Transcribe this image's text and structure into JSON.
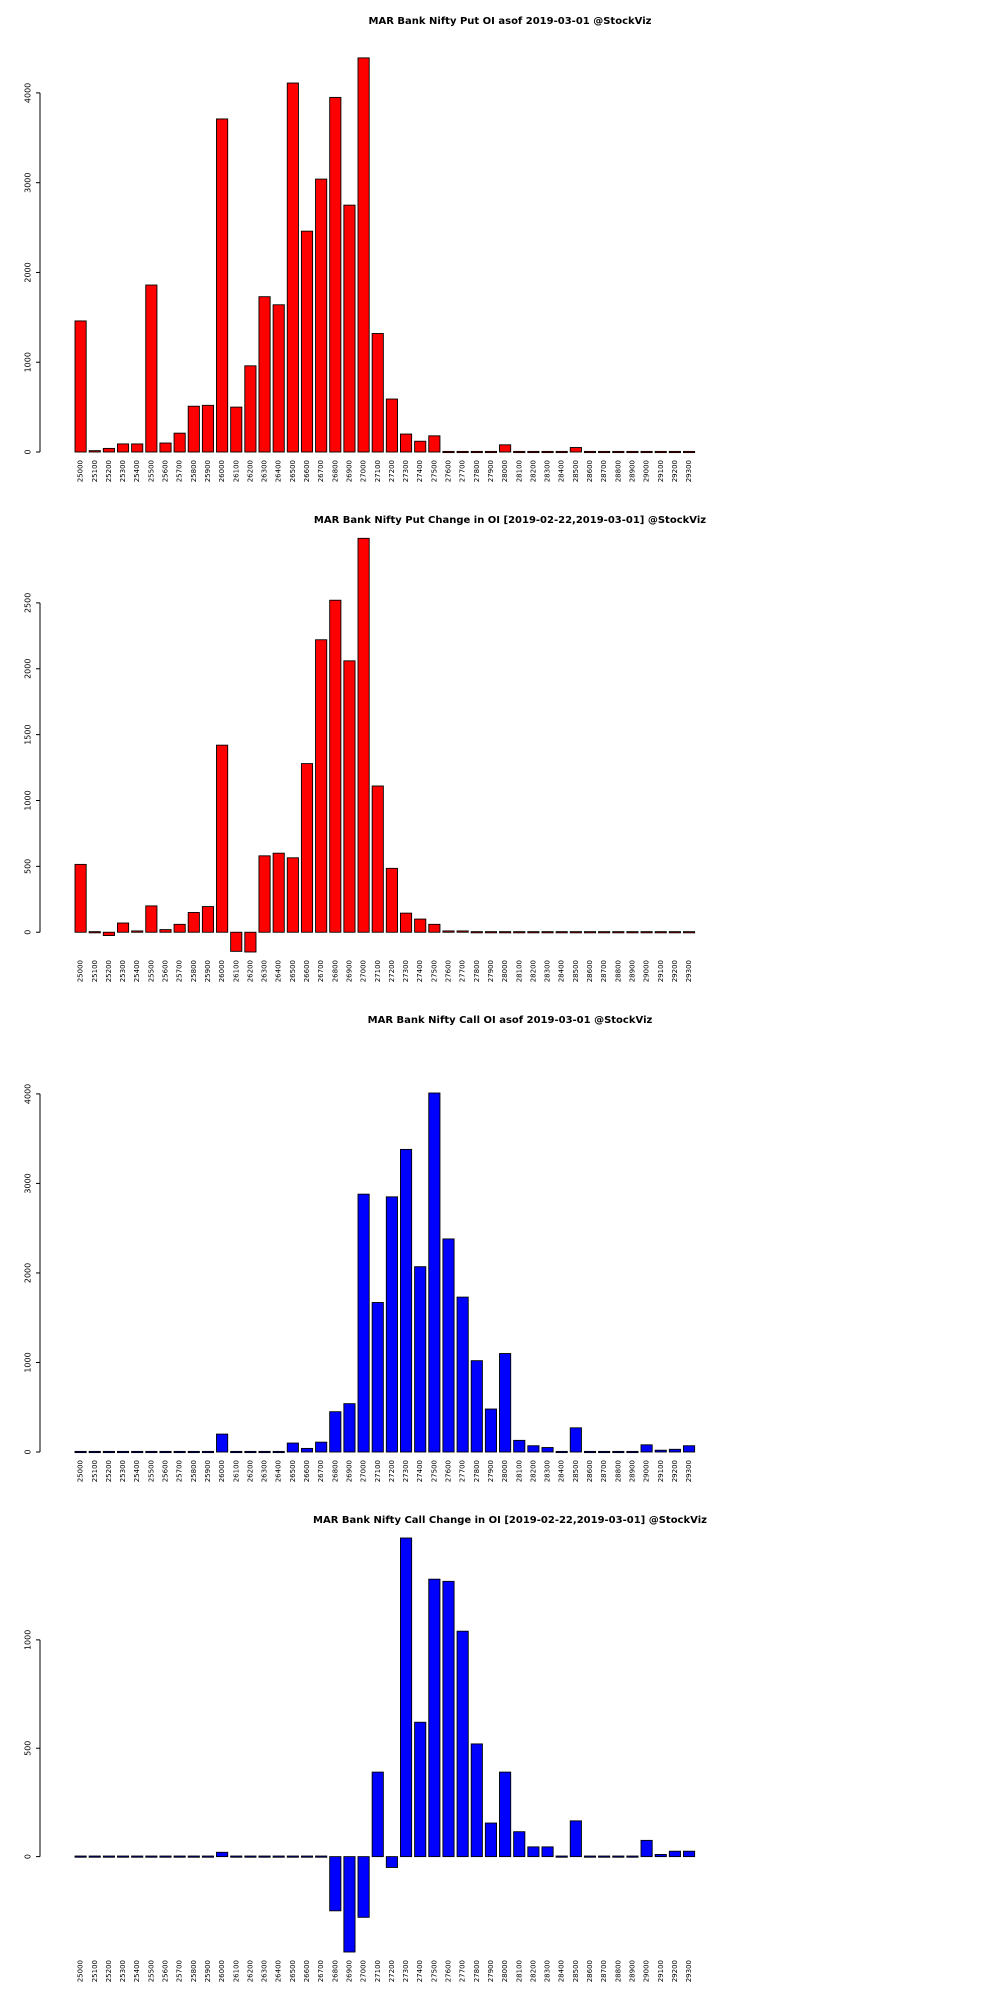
{
  "strikes": [
    "25000",
    "25100",
    "25200",
    "25300",
    "25400",
    "25500",
    "25600",
    "25700",
    "25800",
    "25900",
    "26000",
    "26100",
    "26200",
    "26300",
    "26400",
    "26500",
    "26600",
    "26700",
    "26800",
    "26900",
    "27000",
    "27100",
    "27200",
    "27300",
    "27400",
    "27500",
    "27600",
    "27700",
    "27800",
    "27900",
    "28000",
    "28100",
    "28200",
    "28300",
    "28400",
    "28500",
    "28600",
    "28700",
    "28800",
    "28900",
    "29000",
    "29100",
    "29200",
    "29300"
  ],
  "chart_data": [
    {
      "type": "bar",
      "title": "MAR Bank Nifty Put OI asof 2019-03-01 @StockViz",
      "color": "#ff0000",
      "yticks": [
        0,
        1000,
        2000,
        3000,
        4000
      ],
      "ylim": [
        0,
        4400
      ],
      "values": [
        1460,
        15,
        40,
        90,
        90,
        1860,
        100,
        210,
        510,
        520,
        3710,
        500,
        960,
        1730,
        1640,
        4110,
        2460,
        3040,
        3950,
        2750,
        4390,
        1320,
        590,
        200,
        120,
        180,
        5,
        5,
        5,
        5,
        80,
        5,
        5,
        5,
        5,
        50,
        5,
        5,
        5,
        5,
        5,
        5,
        5,
        5
      ]
    },
    {
      "type": "bar",
      "title": "MAR Bank Nifty Put Change in OI [2019-02-22,2019-03-01] @StockViz",
      "color": "#ff0000",
      "yticks": [
        0,
        500,
        1000,
        1500,
        2000,
        2500
      ],
      "ylim": [
        -150,
        3000
      ],
      "values": [
        515,
        5,
        -25,
        70,
        10,
        200,
        20,
        60,
        150,
        195,
        1420,
        -145,
        -150,
        580,
        600,
        565,
        1280,
        2220,
        2520,
        2060,
        2990,
        1110,
        485,
        145,
        100,
        60,
        10,
        10,
        5,
        5,
        5,
        0,
        0,
        0,
        0,
        5,
        0,
        0,
        0,
        0,
        0,
        0,
        0,
        0
      ]
    },
    {
      "type": "bar",
      "title": "MAR Bank Nifty Call OI asof 2019-03-01 @StockViz",
      "color": "#0000ff",
      "yticks": [
        0,
        1000,
        2000,
        3000,
        4000
      ],
      "ylim": [
        0,
        4010
      ],
      "values": [
        5,
        5,
        5,
        5,
        5,
        5,
        5,
        5,
        5,
        5,
        200,
        10,
        5,
        10,
        10,
        100,
        40,
        110,
        450,
        540,
        2880,
        1670,
        2850,
        3380,
        2070,
        4010,
        2380,
        1730,
        1020,
        480,
        1100,
        130,
        70,
        50,
        5,
        270,
        5,
        5,
        5,
        5,
        80,
        20,
        30,
        70
      ]
    },
    {
      "type": "bar",
      "title": "MAR Bank Nifty Call Change in OI [2019-02-22,2019-03-01] @StockViz",
      "color": "#0000ff",
      "yticks": [
        0,
        500,
        1000
      ],
      "ylim": [
        -440,
        1470
      ],
      "values": [
        0,
        0,
        0,
        0,
        0,
        0,
        0,
        0,
        0,
        0,
        20,
        5,
        5,
        0,
        0,
        5,
        5,
        0,
        -250,
        -440,
        -280,
        390,
        -50,
        1470,
        620,
        1280,
        1270,
        1040,
        520,
        155,
        390,
        115,
        45,
        45,
        0,
        165,
        0,
        0,
        0,
        0,
        75,
        10,
        25,
        25
      ]
    }
  ]
}
